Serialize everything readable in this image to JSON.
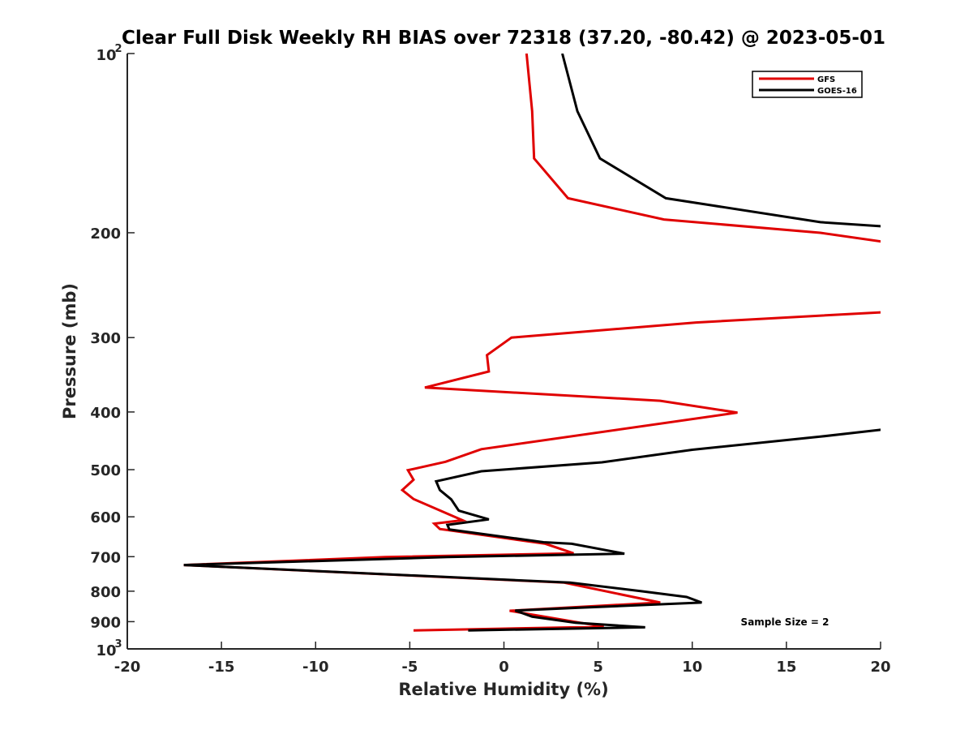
{
  "chart_data": {
    "type": "line",
    "title": "Clear Full Disk Weekly RH BIAS over 72318 (37.20, -80.42) @ 2023-05-01",
    "xlabel": "Relative Humidity (%)",
    "ylabel": "Pressure (mb)",
    "xlim": [
      -20,
      20
    ],
    "ylim": [
      100,
      1000
    ],
    "yscale": "log",
    "y_reversed": true,
    "xticks": [
      "-20",
      "-15",
      "-10",
      "-5",
      "0",
      "5",
      "10",
      "15",
      "20"
    ],
    "yticks": [
      {
        "value": 100,
        "base": "10",
        "exp": "2"
      },
      {
        "value": 200,
        "label": "200"
      },
      {
        "value": 300,
        "label": "300"
      },
      {
        "value": 400,
        "label": "400"
      },
      {
        "value": 500,
        "label": "500"
      },
      {
        "value": 600,
        "label": "600"
      },
      {
        "value": 700,
        "label": "700"
      },
      {
        "value": 800,
        "label": "800"
      },
      {
        "value": 900,
        "label": "900"
      },
      {
        "value": 1000,
        "base": "10",
        "exp": "3"
      }
    ],
    "grid": false,
    "legend_position": "top-right",
    "annotation": "Sample Size = 2",
    "series": [
      {
        "name": "GFS",
        "color": "#e00000",
        "points": [
          [
            1.2,
            100
          ],
          [
            1.5,
            125
          ],
          [
            1.6,
            150
          ],
          [
            3.4,
            175
          ],
          [
            8.5,
            190
          ],
          [
            16.8,
            200
          ],
          [
            21.0,
            209
          ],
          [
            null,
            null
          ],
          [
            21.0,
            271
          ],
          [
            10.2,
            283
          ],
          [
            0.4,
            300
          ],
          [
            -0.9,
            321
          ],
          [
            -0.8,
            342
          ],
          [
            -4.2,
            364
          ],
          [
            8.3,
            383
          ],
          [
            12.4,
            401
          ],
          [
            -1.2,
            462
          ],
          [
            -3.1,
            485
          ],
          [
            -5.1,
            501
          ],
          [
            -4.8,
            520
          ],
          [
            -5.4,
            541
          ],
          [
            -4.8,
            560
          ],
          [
            -2.2,
            608
          ],
          [
            -3.7,
            616
          ],
          [
            -3.4,
            629
          ],
          [
            -2.9,
            632
          ],
          [
            2.2,
            666
          ],
          [
            3.7,
            691
          ],
          [
            -6.3,
            701
          ],
          [
            -17.0,
            723
          ],
          [
            3.2,
            774
          ],
          [
            8.3,
            836
          ],
          [
            0.3,
            863
          ],
          [
            5.3,
            918
          ],
          [
            -4.8,
            931
          ]
        ]
      },
      {
        "name": "GOES-16",
        "color": "#000000",
        "points": [
          [
            3.1,
            100
          ],
          [
            3.9,
            125
          ],
          [
            5.1,
            150
          ],
          [
            8.6,
            175
          ],
          [
            16.8,
            192
          ],
          [
            21.0,
            196
          ],
          [
            null,
            null
          ],
          [
            21.0,
            425
          ],
          [
            16.8,
            440
          ],
          [
            10.0,
            463
          ],
          [
            5.2,
            486
          ],
          [
            -1.2,
            503
          ],
          [
            -3.6,
            523
          ],
          [
            -3.4,
            541
          ],
          [
            -2.8,
            561
          ],
          [
            -2.4,
            586
          ],
          [
            -0.8,
            606
          ],
          [
            -3.0,
            619
          ],
          [
            -2.9,
            630
          ],
          [
            2.1,
            662
          ],
          [
            3.6,
            666
          ],
          [
            6.4,
            692
          ],
          [
            -3.0,
            701
          ],
          [
            -17.0,
            723
          ],
          [
            3.5,
            774
          ],
          [
            7.3,
            800
          ],
          [
            9.7,
            818
          ],
          [
            10.5,
            836
          ],
          [
            4.0,
            853
          ],
          [
            0.6,
            862
          ],
          [
            1.5,
            883
          ],
          [
            3.8,
            904
          ],
          [
            7.5,
            920
          ],
          [
            -1.9,
            931
          ]
        ]
      }
    ]
  }
}
